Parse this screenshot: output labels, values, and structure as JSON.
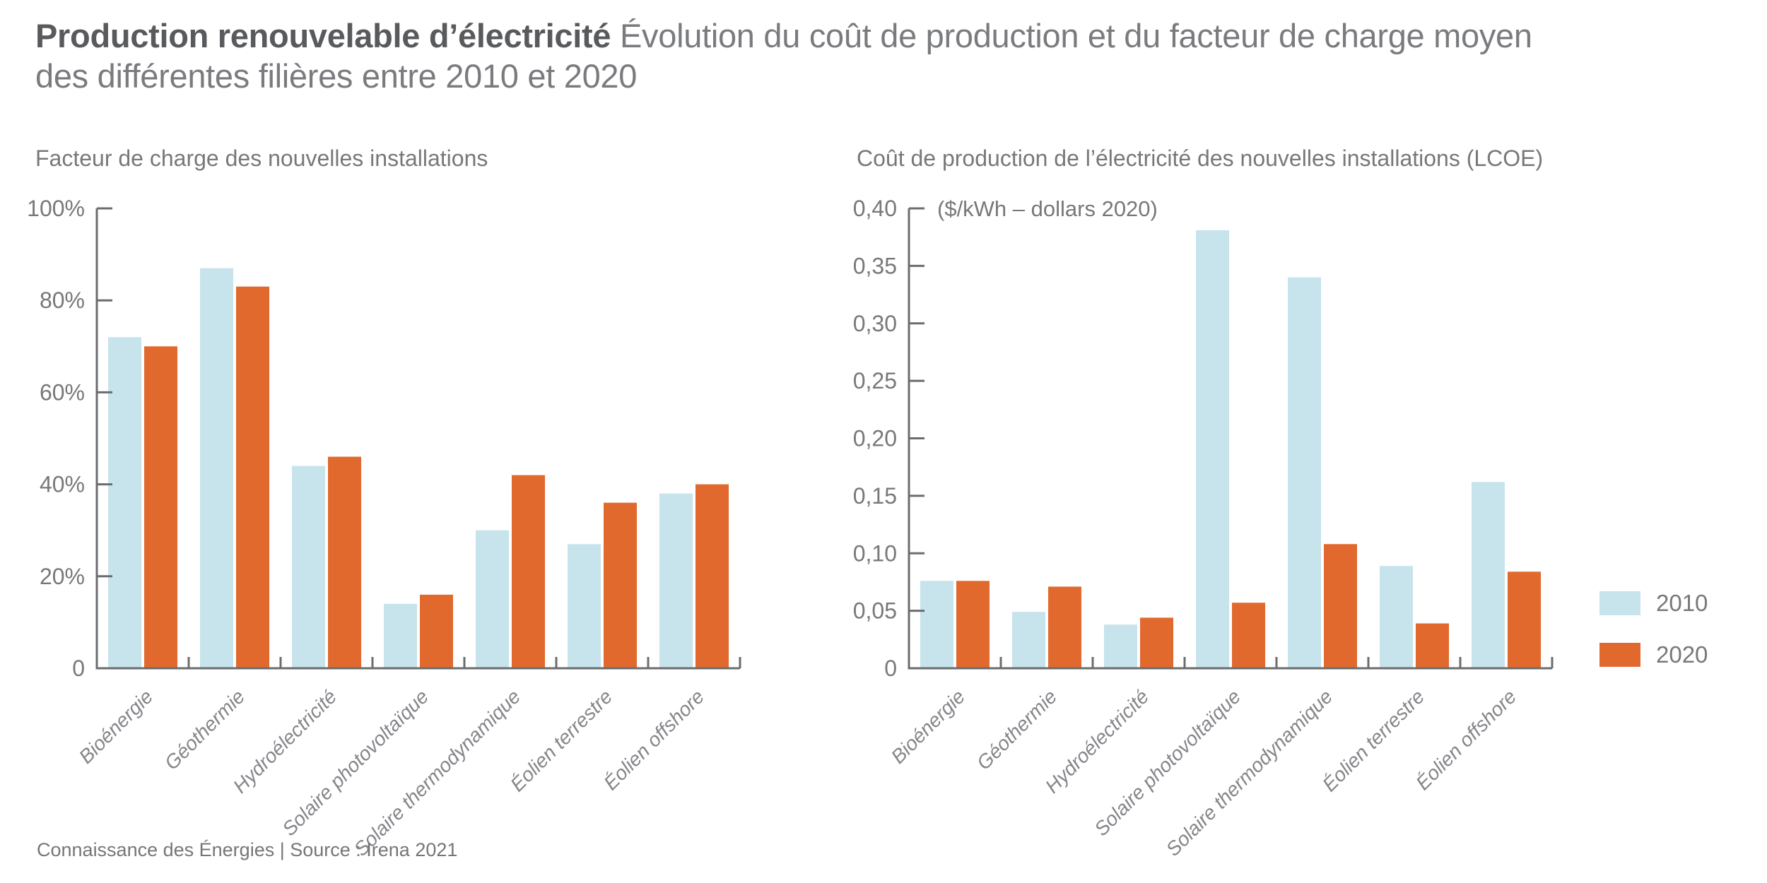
{
  "title": {
    "bold": "Production renouvelable d’électricité",
    "regular": "Évolution du coût de production et du facteur de charge moyen des différentes filières entre 2010 et 2020"
  },
  "footer": "Connaissance des Énergies | Source : Irena 2021",
  "legend": {
    "items": [
      {
        "label": "2010",
        "color_key": "c2010"
      },
      {
        "label": "2020",
        "color_key": "c2020"
      }
    ]
  },
  "colors": {
    "c2010": "#c7e3ec",
    "c2020": "#e1692e",
    "axis": "#6b6c6e",
    "tick_text": "#77787a",
    "xlabel_text": "#85868a",
    "title_bold": "#595a5d",
    "title_regular": "#7a7b7e",
    "footer": "#757678"
  },
  "chart_data": [
    {
      "type": "bar",
      "title": "Facteur de charge des nouvelles installations",
      "categories": [
        "Bioénergie",
        "Géothermie",
        "Hydroélectricité",
        "Solaire photovoltaïque",
        "Solaire thermodynamique",
        "Éolien terrestre",
        "Éolien offshore"
      ],
      "series": [
        {
          "name": "2010",
          "color_key": "c2010",
          "values": [
            72,
            87,
            44,
            14,
            30,
            27,
            38
          ]
        },
        {
          "name": "2020",
          "color_key": "c2020",
          "values": [
            70,
            83,
            46,
            16,
            42,
            36,
            40
          ]
        }
      ],
      "unit": "%",
      "ylim": [
        0,
        100
      ],
      "y_ticks": [
        {
          "label": "100%",
          "value": 100
        },
        {
          "label": "80%",
          "value": 80
        },
        {
          "label": "60%",
          "value": 60
        },
        {
          "label": "40%",
          "value": 40
        },
        {
          "label": "20%",
          "value": 20
        },
        {
          "label": "0",
          "value": 0
        }
      ],
      "annotation": "",
      "legend_position": "none",
      "grid": false
    },
    {
      "type": "bar",
      "title": "Coût de production de l’électricité des nouvelles installations (LCOE)",
      "categories": [
        "Bioénergie",
        "Géothermie",
        "Hydroélectricité",
        "Solaire photovoltaïque",
        "Solaire thermodynamique",
        "Éolien terrestre",
        "Éolien offshore"
      ],
      "series": [
        {
          "name": "2010",
          "color_key": "c2010",
          "values": [
            0.076,
            0.049,
            0.038,
            0.381,
            0.34,
            0.089,
            0.162
          ]
        },
        {
          "name": "2020",
          "color_key": "c2020",
          "values": [
            0.076,
            0.071,
            0.044,
            0.057,
            0.108,
            0.039,
            0.084
          ]
        }
      ],
      "unit": "$/kWh",
      "ylim": [
        0,
        0.4
      ],
      "y_ticks": [
        {
          "label": "0,40",
          "value": 0.4
        },
        {
          "label": "0,35",
          "value": 0.35
        },
        {
          "label": "0,30",
          "value": 0.3
        },
        {
          "label": "0,25",
          "value": 0.25
        },
        {
          "label": "0,20",
          "value": 0.2
        },
        {
          "label": "0,15",
          "value": 0.15
        },
        {
          "label": "0,10",
          "value": 0.1
        },
        {
          "label": "0,05",
          "value": 0.05
        },
        {
          "label": "0",
          "value": 0
        }
      ],
      "annotation": "($/kWh – dollars 2020)",
      "legend_position": "right",
      "grid": false
    }
  ]
}
